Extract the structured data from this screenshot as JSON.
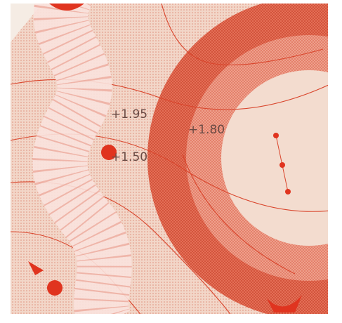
{
  "labels": [
    {
      "text": "+1.95"
    },
    {
      "text": "+1.80"
    },
    {
      "text": "+1.50"
    }
  ]
}
